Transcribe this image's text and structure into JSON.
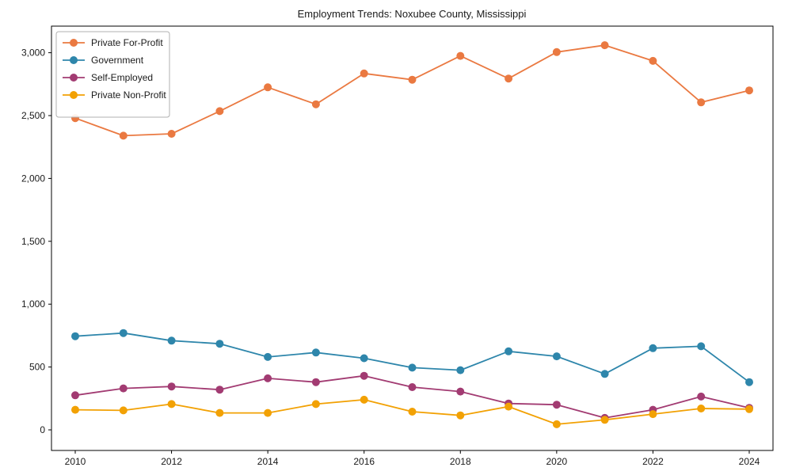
{
  "title": "Employment Trends: Noxubee County, Mississippi",
  "chart_data": {
    "type": "line",
    "title": "Employment Trends: Noxubee County, Mississippi",
    "xlabel": "",
    "ylabel": "",
    "x": [
      2010,
      2011,
      2012,
      2013,
      2014,
      2015,
      2016,
      2017,
      2018,
      2019,
      2020,
      2021,
      2022,
      2023,
      2024
    ],
    "series": [
      {
        "name": "Private For-Profit",
        "color": "#ea7941",
        "values": [
          2480,
          2340,
          2355,
          2535,
          2725,
          2590,
          2835,
          2785,
          2975,
          2795,
          3005,
          3060,
          2935,
          2605,
          2700
        ]
      },
      {
        "name": "Government",
        "color": "#2e86ab",
        "values": [
          745,
          770,
          710,
          685,
          580,
          615,
          570,
          495,
          475,
          625,
          585,
          445,
          650,
          665,
          380
        ]
      },
      {
        "name": "Self-Employed",
        "color": "#a23b72",
        "values": [
          275,
          330,
          345,
          320,
          410,
          380,
          430,
          340,
          305,
          210,
          200,
          95,
          160,
          265,
          175
        ]
      },
      {
        "name": "Private Non-Profit",
        "color": "#f2a104",
        "values": [
          160,
          155,
          205,
          135,
          135,
          205,
          240,
          145,
          115,
          185,
          45,
          80,
          125,
          170,
          165
        ]
      }
    ],
    "xticks": [
      2010,
      2012,
      2014,
      2016,
      2018,
      2020,
      2022,
      2024
    ],
    "yticks": [
      0,
      500,
      1000,
      1500,
      2000,
      2500,
      3000
    ],
    "ytick_labels": [
      "0",
      "500",
      "1,000",
      "1,500",
      "2,000",
      "2,500",
      "3,000"
    ],
    "ylim": [
      -165,
      3210
    ],
    "xlim": [
      2009.5,
      2024.5
    ],
    "grid": false,
    "legend_position": "upper left",
    "marker": "circle",
    "axis_color": "#000000",
    "legend_border_color": "#b0b0b0",
    "background_color": "#ffffff"
  }
}
